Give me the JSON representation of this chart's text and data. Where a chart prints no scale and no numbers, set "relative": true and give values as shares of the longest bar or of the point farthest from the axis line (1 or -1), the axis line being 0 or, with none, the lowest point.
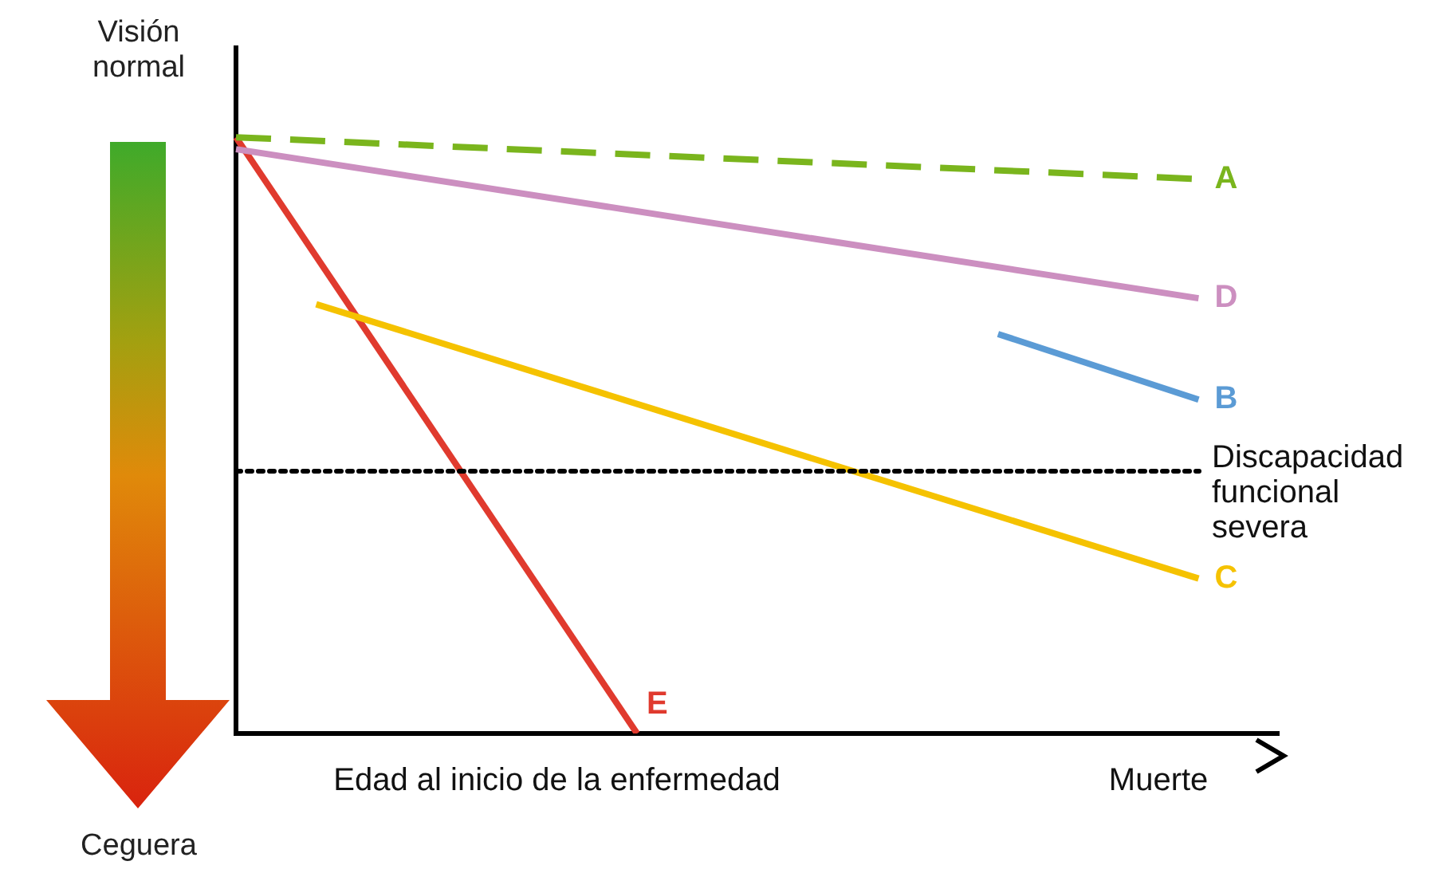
{
  "chart_data": {
    "type": "line",
    "relative": true,
    "categories": [
      null,
      null,
      null,
      null,
      null,
      null,
      null,
      null,
      "Edad al inicio de la enfermedad",
      null,
      null,
      null,
      null,
      null,
      null,
      null,
      null,
      null,
      null,
      null,
      null,
      null,
      null,
      "Muerte",
      null,
      null,
      null
    ],
    "series": [
      {
        "name": "A",
        "color": "#7ab51d",
        "line_style": "dashed",
        "values": [
          1.0,
          null,
          null,
          null,
          null,
          null,
          null,
          null,
          null,
          null,
          null,
          null,
          null,
          null,
          null,
          null,
          null,
          null,
          null,
          null,
          null,
          null,
          null,
          null,
          0.93,
          null,
          null
        ]
      },
      {
        "name": "D",
        "color": "#cc8fc0",
        "values": [
          0.98,
          null,
          null,
          null,
          null,
          null,
          null,
          null,
          null,
          null,
          null,
          null,
          null,
          null,
          null,
          null,
          null,
          null,
          null,
          null,
          null,
          null,
          null,
          null,
          0.73,
          null,
          null
        ]
      },
      {
        "name": "B",
        "color": "#5b9bd5",
        "values": [
          null,
          null,
          null,
          null,
          null,
          null,
          null,
          null,
          null,
          null,
          null,
          null,
          null,
          null,
          null,
          null,
          null,
          null,
          null,
          0.67,
          null,
          null,
          null,
          null,
          0.56,
          null,
          null
        ]
      },
      {
        "name": "C",
        "color": "#f5c200",
        "values": [
          null,
          null,
          0.72,
          null,
          null,
          null,
          null,
          null,
          null,
          null,
          null,
          null,
          null,
          null,
          null,
          null,
          null,
          null,
          null,
          null,
          null,
          null,
          null,
          null,
          0.26,
          null,
          null
        ]
      },
      {
        "name": "E",
        "color": "#e03a2e",
        "values": [
          1.0,
          null,
          null,
          null,
          null,
          null,
          null,
          null,
          null,
          null,
          0.0,
          null,
          null,
          null,
          null,
          null,
          null,
          null,
          null,
          null,
          null,
          null,
          null,
          null,
          null,
          null,
          null
        ]
      }
    ],
    "ref_lines": [
      {
        "axis": "y",
        "value": 0.44,
        "label": "Discapacidad funcional severa",
        "color": "#000000",
        "line_style": "dotted"
      }
    ],
    "annotations": [
      "Visión normal",
      "Ceguera"
    ],
    "legend": false,
    "grid": false,
    "marker": "none",
    "line_style": "solid"
  }
}
